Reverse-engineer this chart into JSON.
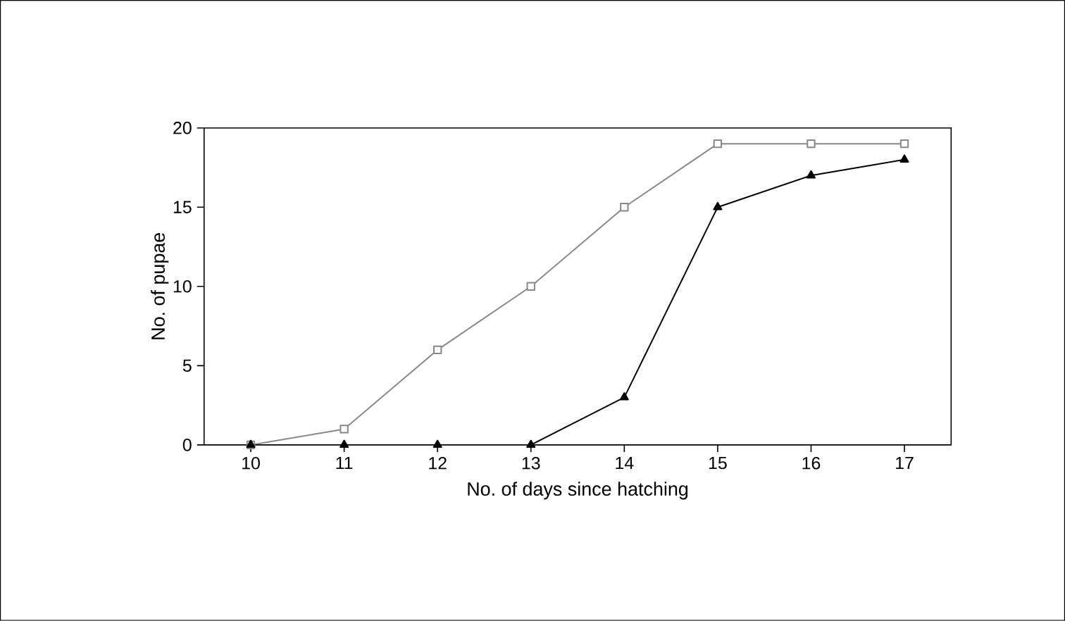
{
  "chart_data": {
    "type": "line",
    "xlabel": "No. of days since hatching",
    "ylabel": "No. of pupae",
    "x": [
      10,
      11,
      12,
      13,
      14,
      15,
      16,
      17
    ],
    "xlim": [
      9.5,
      17.5
    ],
    "xticks": [
      10,
      11,
      12,
      13,
      14,
      15,
      16,
      17
    ],
    "ylim": [
      0,
      20
    ],
    "yticks": [
      0,
      5,
      10,
      15,
      20
    ],
    "grid": false,
    "series": [
      {
        "color": "#888888",
        "marker": "square",
        "values": [
          0,
          1,
          6,
          10,
          15,
          19,
          19,
          19
        ]
      },
      {
        "color": "#000000",
        "marker": "triangle",
        "values": [
          0,
          0,
          0,
          0,
          3,
          15,
          17,
          18
        ]
      }
    ]
  }
}
